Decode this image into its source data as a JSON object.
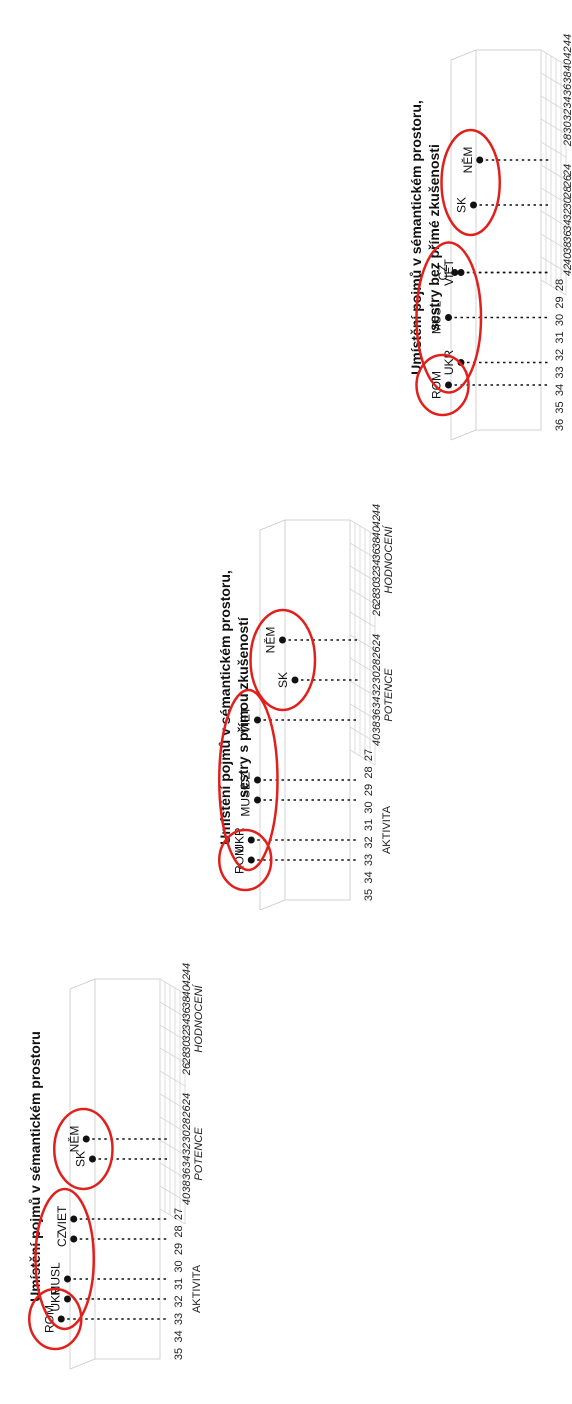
{
  "colors": {
    "highlight": "#e0201c",
    "point": "#111111",
    "grid": "#d6d6d6"
  },
  "chart_data": [
    {
      "type": "scatter",
      "title": "Umístění pojmů v sémantickém prostoru",
      "subtitle": "",
      "axis_labels": {
        "z": "AKTIVITA",
        "x": "POTENCE",
        "y": "HODNOCENÍ"
      },
      "zticks": [
        "35",
        "34",
        "33",
        "32",
        "31",
        "30",
        "29",
        "28",
        "27"
      ],
      "xticks": [
        "40",
        "38",
        "36",
        "34",
        "32",
        "30",
        "28",
        "26",
        "24"
      ],
      "yticks": [
        "26",
        "28",
        "30",
        "32",
        "34",
        "36",
        "38",
        "40",
        "42",
        "44"
      ],
      "xlim": [
        24,
        40
      ],
      "ylim": [
        26,
        44
      ],
      "zlim": [
        27,
        35
      ],
      "points": [
        {
          "label": "ROM",
          "x": 34,
          "y": 42,
          "z": 34.5
        },
        {
          "label": "MUSL",
          "x": 32,
          "y": 40,
          "z": 34.0
        },
        {
          "label": "UKR",
          "x": 31,
          "y": 41,
          "z": 34.0
        },
        {
          "label": "CZ",
          "x": 32,
          "y": 38,
          "z": 33.5
        },
        {
          "label": "VIET",
          "x": 32,
          "y": 37,
          "z": 33.5
        },
        {
          "label": "NĚM",
          "x": 28,
          "y": 33,
          "z": 32.5
        },
        {
          "label": "SK",
          "x": 28,
          "y": 34,
          "z": 32.0
        }
      ],
      "groups": [
        [
          "ROM"
        ],
        [
          "MUSL",
          "UKR",
          "CZ",
          "VIET"
        ],
        [
          "NĚM",
          "SK"
        ]
      ]
    },
    {
      "type": "scatter",
      "title": "Umístění pojmů v sémantickém prostoru,",
      "subtitle": "sestry s přímou zkušeností",
      "axis_labels": {
        "z": "AKTIVITA",
        "x": "POTENCE",
        "y": "HODNOCENÍ"
      },
      "zticks": [
        "35",
        "34",
        "33",
        "32",
        "31",
        "30",
        "29",
        "28",
        "27"
      ],
      "xticks": [
        "40",
        "38",
        "36",
        "34",
        "32",
        "30",
        "28",
        "26",
        "24"
      ],
      "yticks": [
        "26",
        "28",
        "30",
        "32",
        "34",
        "36",
        "38",
        "40",
        "42",
        "44"
      ],
      "xlim": [
        24,
        40
      ],
      "ylim": [
        26,
        44
      ],
      "zlim": [
        27,
        35
      ],
      "points": [
        {
          "label": "ROM",
          "x": 35,
          "y": 42,
          "z": 34.5
        },
        {
          "label": "UKR",
          "x": 31,
          "y": 41,
          "z": 34.5
        },
        {
          "label": "MUSL",
          "x": 31,
          "y": 39,
          "z": 34.0
        },
        {
          "label": "CZ",
          "x": 31,
          "y": 38,
          "z": 34.0
        },
        {
          "label": "VIET",
          "x": 30,
          "y": 35,
          "z": 34.0
        },
        {
          "label": "NĚM",
          "x": 27,
          "y": 31,
          "z": 32.0
        },
        {
          "label": "SK",
          "x": 27,
          "y": 33,
          "z": 31.0
        }
      ],
      "groups": [
        [
          "ROM"
        ],
        [
          "UKR",
          "MUSL",
          "CZ",
          "VIET"
        ],
        [
          "NĚM",
          "SK"
        ]
      ]
    },
    {
      "type": "scatter",
      "title": "Umístění pojmů v sémantickém prostoru,",
      "subtitle": "sestry bez přímé zkušenosti",
      "axis_labels": {
        "z": "AKTIVITA",
        "x": "POTENCE",
        "y": "HODNOCENÍ"
      },
      "zticks": [
        "36",
        "35",
        "34",
        "33",
        "32",
        "31",
        "30",
        "29",
        "28"
      ],
      "xticks": [
        "42",
        "40",
        "38",
        "36",
        "34",
        "32",
        "30",
        "28",
        "26",
        "24"
      ],
      "yticks": [
        "28",
        "30",
        "32",
        "34",
        "36",
        "38",
        "40",
        "42",
        "44"
      ],
      "xlim": [
        24,
        42
      ],
      "ylim": [
        28,
        44
      ],
      "zlim": [
        28,
        36
      ],
      "points": [
        {
          "label": "ROM",
          "x": 36,
          "y": 42,
          "z": 35.0
        },
        {
          "label": "MUSL",
          "x": 31,
          "y": 39,
          "z": 35.0
        },
        {
          "label": "UKR",
          "x": 31,
          "y": 41,
          "z": 34.0
        },
        {
          "label": "CZ",
          "x": 30,
          "y": 37,
          "z": 34.5
        },
        {
          "label": "VIET",
          "x": 30,
          "y": 37,
          "z": 34.0
        },
        {
          "label": "SK",
          "x": 28,
          "y": 34,
          "z": 33.0
        },
        {
          "label": "NĚM",
          "x": 27,
          "y": 32,
          "z": 32.5
        }
      ],
      "groups": [
        [
          "ROM"
        ],
        [
          "MUSL",
          "UKR",
          "CZ",
          "VIET"
        ],
        [
          "SK",
          "NĚM"
        ]
      ]
    }
  ]
}
